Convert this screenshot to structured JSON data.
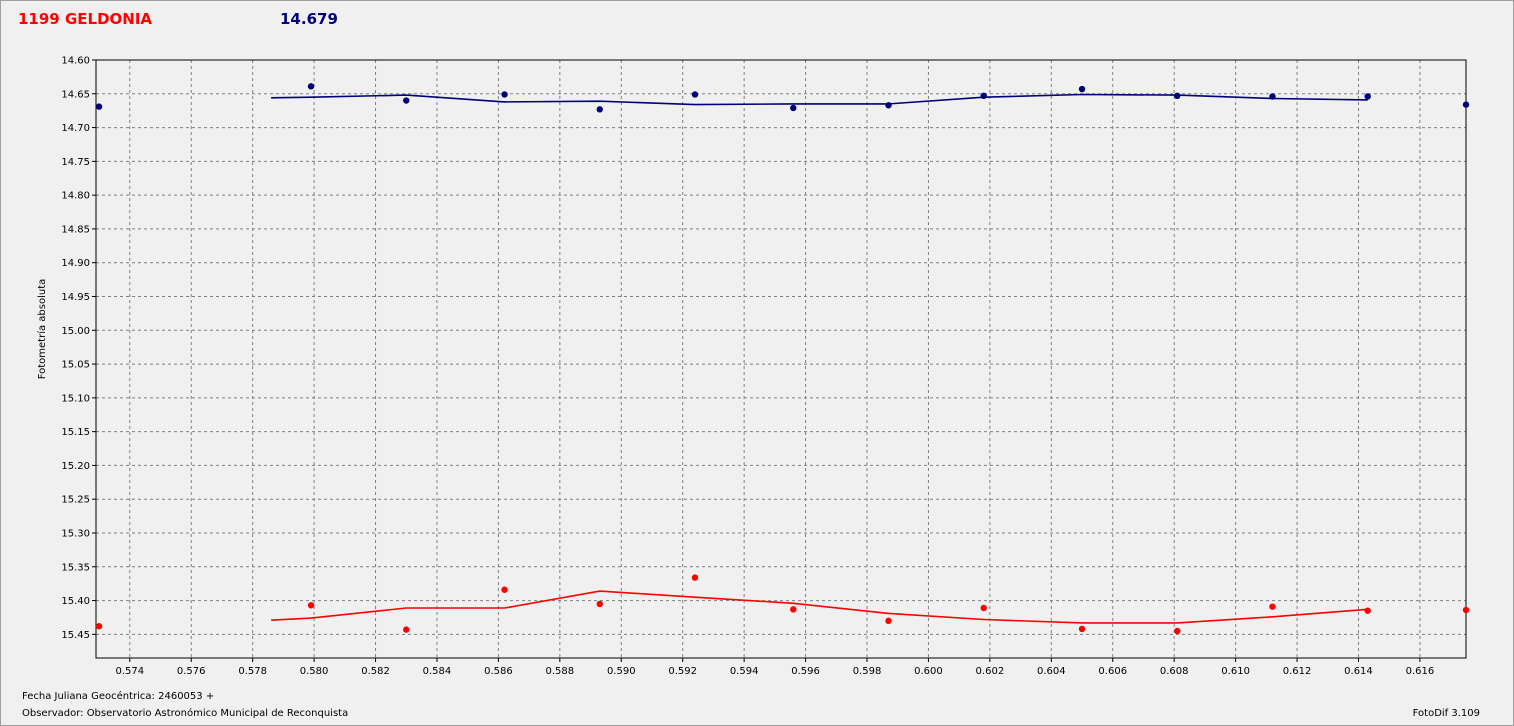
{
  "header": {
    "object_name": "1199 GELDONIA",
    "magnitude": "14.679"
  },
  "footer": {
    "date_label": "Fecha Juliana Geocéntrica: 2460053 +",
    "observer_label": "Observador: Observatorio Astronómico Municipal de Reconquista",
    "software": "FotoDif 3.109"
  },
  "colors": {
    "blue_series": "#00007a",
    "red_series": "#ff0000"
  },
  "chart_data": {
    "type": "scatter",
    "ylabel": "Fotometría absoluta",
    "xlabel": "",
    "xlim": [
      0.5729,
      0.6175
    ],
    "ylim": [
      14.6,
      15.485
    ],
    "y_inverted": true,
    "grid": true,
    "x_ticks": [
      "0.574",
      "0.576",
      "0.578",
      "0.580",
      "0.582",
      "0.584",
      "0.586",
      "0.588",
      "0.590",
      "0.592",
      "0.594",
      "0.596",
      "0.598",
      "0.600",
      "0.602",
      "0.604",
      "0.606",
      "0.608",
      "0.610",
      "0.612",
      "0.614",
      "0.616"
    ],
    "y_ticks": [
      "14.60",
      "14.65",
      "14.70",
      "14.75",
      "14.80",
      "14.85",
      "14.90",
      "14.95",
      "15.00",
      "15.05",
      "15.10",
      "15.15",
      "15.20",
      "15.25",
      "15.30",
      "15.35",
      "15.40",
      "15.45"
    ],
    "series": [
      {
        "color": "#00007a",
        "points": [
          [
            0.573,
            14.669
          ],
          [
            0.5799,
            14.639
          ],
          [
            0.583,
            14.66
          ],
          [
            0.5862,
            14.651
          ],
          [
            0.5893,
            14.673
          ],
          [
            0.5924,
            14.651
          ],
          [
            0.5956,
            14.671
          ],
          [
            0.5987,
            14.667
          ],
          [
            0.6018,
            14.653
          ],
          [
            0.605,
            14.643
          ],
          [
            0.6081,
            14.653
          ],
          [
            0.6112,
            14.654
          ],
          [
            0.6143,
            14.654
          ],
          [
            0.6175,
            14.666
          ]
        ],
        "curve": [
          [
            0.5786,
            14.656
          ],
          [
            0.5799,
            14.655
          ],
          [
            0.583,
            14.652
          ],
          [
            0.5862,
            14.662
          ],
          [
            0.5893,
            14.661
          ],
          [
            0.5924,
            14.666
          ],
          [
            0.5956,
            14.665
          ],
          [
            0.5987,
            14.665
          ],
          [
            0.6018,
            14.655
          ],
          [
            0.605,
            14.651
          ],
          [
            0.6081,
            14.652
          ],
          [
            0.6112,
            14.657
          ],
          [
            0.6143,
            14.659
          ]
        ]
      },
      {
        "color": "#ff0000",
        "points": [
          [
            0.573,
            15.438
          ],
          [
            0.5799,
            15.407
          ],
          [
            0.583,
            15.443
          ],
          [
            0.5862,
            15.384
          ],
          [
            0.5893,
            15.405
          ],
          [
            0.5924,
            15.366
          ],
          [
            0.5956,
            15.413
          ],
          [
            0.5987,
            15.43
          ],
          [
            0.6018,
            15.411
          ],
          [
            0.605,
            15.442
          ],
          [
            0.6081,
            15.445
          ],
          [
            0.6112,
            15.409
          ],
          [
            0.6143,
            15.415
          ],
          [
            0.6175,
            15.414
          ]
        ],
        "curve": [
          [
            0.5786,
            15.429
          ],
          [
            0.5799,
            15.426
          ],
          [
            0.583,
            15.411
          ],
          [
            0.5862,
            15.411
          ],
          [
            0.5893,
            15.386
          ],
          [
            0.5924,
            15.395
          ],
          [
            0.5956,
            15.404
          ],
          [
            0.5987,
            15.419
          ],
          [
            0.6018,
            15.428
          ],
          [
            0.605,
            15.433
          ],
          [
            0.6081,
            15.433
          ],
          [
            0.6112,
            15.424
          ],
          [
            0.6143,
            15.413
          ]
        ]
      }
    ]
  }
}
